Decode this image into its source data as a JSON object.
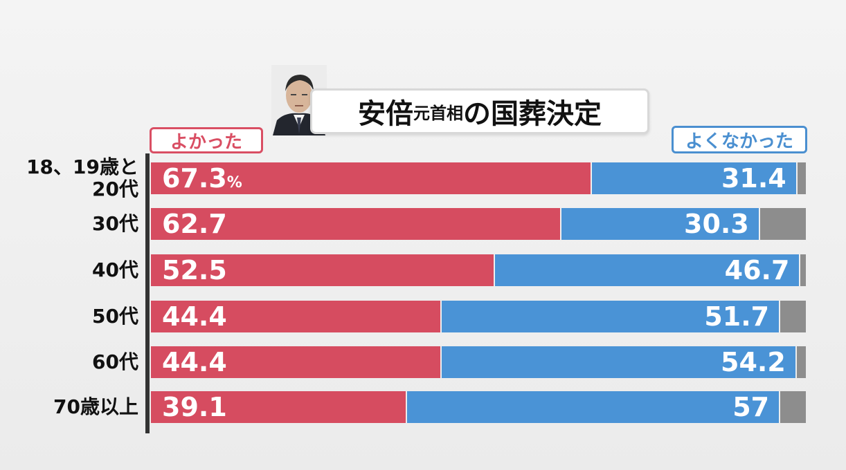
{
  "title": {
    "part1": "安倍",
    "part2": "元首相",
    "part3": "の国葬決定"
  },
  "legend": {
    "yes": "よかった",
    "no": "よくなかった"
  },
  "unit": "%",
  "colors": {
    "yes": "#d64c60",
    "no": "#4a93d6",
    "other": "#8d8d8d"
  },
  "chart_data": {
    "type": "bar",
    "orientation": "horizontal",
    "stacked": true,
    "categories": [
      "18、19歳と\n20代",
      "30代",
      "40代",
      "50代",
      "60代",
      "70歳以上"
    ],
    "series": [
      {
        "name": "よかった",
        "values": [
          67.3,
          62.7,
          52.5,
          44.4,
          44.4,
          39.1
        ],
        "labels": [
          "67.3",
          "62.7",
          "52.5",
          "44.4",
          "44.4",
          "39.1"
        ]
      },
      {
        "name": "よくなかった",
        "values": [
          31.4,
          30.3,
          46.7,
          51.7,
          54.2,
          57
        ],
        "labels": [
          "31.4",
          "30.3",
          "46.7",
          "51.7",
          "54.2",
          "57"
        ]
      }
    ],
    "xlim": [
      0,
      100
    ]
  }
}
